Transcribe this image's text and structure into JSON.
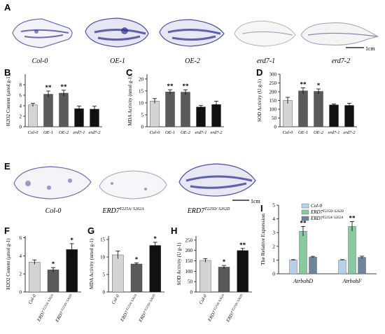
{
  "figure": {
    "panel_A": {
      "letter": "A",
      "labels": [
        "Col-0",
        "OE-1",
        "OE-2",
        "erd7-1",
        "erd7-2"
      ],
      "scale_bar": "1cm"
    },
    "panel_E": {
      "letter": "E",
      "labels": [
        "Col-0",
        "ERD7",
        "ERD7"
      ],
      "label_superscripts": [
        "",
        "T225A/ S262A",
        "T225D/ S262D"
      ],
      "scale_bar": "1cm"
    }
  },
  "colors": {
    "light_gray": "#d4d4d4",
    "dark_gray": "#5a5a5a",
    "black": "#111111",
    "blue_bar": "#b7d0ea",
    "green_bar": "#88c9a2",
    "slate_bar": "#6f8499",
    "leaf_stain": "#3b3f9c"
  },
  "chart_data": [
    {
      "panel": "B",
      "type": "bar",
      "ylabel": "H2O2 Content (μmol g-1)",
      "ylim": [
        0,
        10
      ],
      "yticks": [
        0,
        2,
        4,
        6,
        8
      ],
      "categories": [
        "Col-0",
        "OE-1",
        "OE-2",
        "erd7-1",
        "erd7-2"
      ],
      "values": [
        4.15,
        6.2,
        6.4,
        3.45,
        3.35
      ],
      "errors": [
        0.3,
        0.6,
        0.55,
        0.5,
        0.55
      ],
      "significance": [
        "",
        "**",
        "**",
        "",
        ""
      ],
      "bar_colors": [
        "light_gray",
        "dark_gray",
        "dark_gray",
        "black",
        "black"
      ]
    },
    {
      "panel": "C",
      "type": "bar",
      "ylabel": "MDA Activity (nmol g-1)",
      "ylim": [
        0,
        22
      ],
      "yticks": [
        0,
        5,
        10,
        15,
        20
      ],
      "categories": [
        "Col-0",
        "OE-1",
        "OE-2",
        "erd7-1",
        "erd7-2"
      ],
      "values": [
        10.8,
        14.6,
        14.5,
        8.3,
        9.3
      ],
      "errors": [
        1.0,
        0.9,
        1.0,
        0.6,
        1.4
      ],
      "significance": [
        "",
        "**",
        "**",
        "",
        ""
      ],
      "bar_colors": [
        "light_gray",
        "dark_gray",
        "dark_gray",
        "black",
        "black"
      ]
    },
    {
      "panel": "D",
      "type": "bar",
      "ylabel": "SOD Activity (U g-1)",
      "ylim": [
        0,
        300
      ],
      "yticks": [
        0,
        50,
        100,
        150,
        200,
        250,
        300
      ],
      "categories": [
        "Col-0",
        "OE-1",
        "OE-2",
        "erd7-1",
        "erd7-2"
      ],
      "values": [
        150,
        205,
        202,
        125,
        122
      ],
      "errors": [
        18,
        17,
        14,
        5,
        12
      ],
      "significance": [
        "",
        "**",
        "*",
        "",
        ""
      ],
      "bar_colors": [
        "light_gray",
        "dark_gray",
        "dark_gray",
        "black",
        "black"
      ]
    },
    {
      "panel": "F",
      "type": "bar",
      "ylabel": "H2O2 Content (μmol g-1)",
      "ylim": [
        0,
        6.2
      ],
      "yticks": [
        0,
        2,
        4,
        6
      ],
      "categories": [
        "Col-0",
        "ERD7 T225A/ S262A",
        "ERD7 T225D/ S262D"
      ],
      "values": [
        3.3,
        2.45,
        4.7
      ],
      "errors": [
        0.25,
        0.25,
        0.65
      ],
      "significance": [
        "",
        "*",
        "*"
      ],
      "bar_colors": [
        "light_gray",
        "dark_gray",
        "black"
      ]
    },
    {
      "panel": "G",
      "type": "bar",
      "ylabel": "MDA Activity (nmol g-1)",
      "ylim": [
        0,
        16
      ],
      "yticks": [
        0,
        5,
        10,
        15
      ],
      "categories": [
        "Col-0",
        "ERD7 T225A/ S262A",
        "ERD7 T225D/ S262D"
      ],
      "values": [
        10.6,
        8.0,
        13.3
      ],
      "errors": [
        1.1,
        0.3,
        0.9
      ],
      "significance": [
        "",
        "*",
        "*"
      ],
      "bar_colors": [
        "light_gray",
        "dark_gray",
        "black"
      ]
    },
    {
      "panel": "H",
      "type": "bar",
      "ylabel": "SOD Activity (U g-1)",
      "ylim": [
        0,
        270
      ],
      "yticks": [
        0,
        50,
        100,
        150,
        200,
        250
      ],
      "categories": [
        "Col-0",
        "ERD7 T225A/ S262A",
        "ERD7 T225D/ S262D"
      ],
      "values": [
        152,
        120,
        200
      ],
      "errors": [
        9,
        8,
        10
      ],
      "significance": [
        "",
        "*",
        "**"
      ],
      "bar_colors": [
        "light_gray",
        "dark_gray",
        "black"
      ]
    },
    {
      "panel": "I",
      "type": "bar",
      "ylabel": "The Relative Expression",
      "ylim": [
        0,
        5
      ],
      "yticks": [
        0,
        1,
        2,
        3,
        4,
        5
      ],
      "categories": [
        "AtrbohD",
        "AtrbohF"
      ],
      "series": [
        {
          "name": "Col-0",
          "values": [
            1.0,
            1.0
          ],
          "errors": [
            0.03,
            0.03
          ],
          "significance": [
            "",
            ""
          ],
          "color": "blue_bar"
        },
        {
          "name": "ERD7 T225D/ S262D",
          "values": [
            3.1,
            3.45
          ],
          "errors": [
            0.35,
            0.35
          ],
          "significance": [
            "**",
            "**"
          ],
          "color": "green_bar"
        },
        {
          "name": "ERD7 T225A/ S262A",
          "values": [
            1.22,
            1.2
          ],
          "errors": [
            0.05,
            0.08
          ],
          "significance": [
            "",
            ""
          ],
          "color": "slate_bar"
        }
      ]
    }
  ]
}
